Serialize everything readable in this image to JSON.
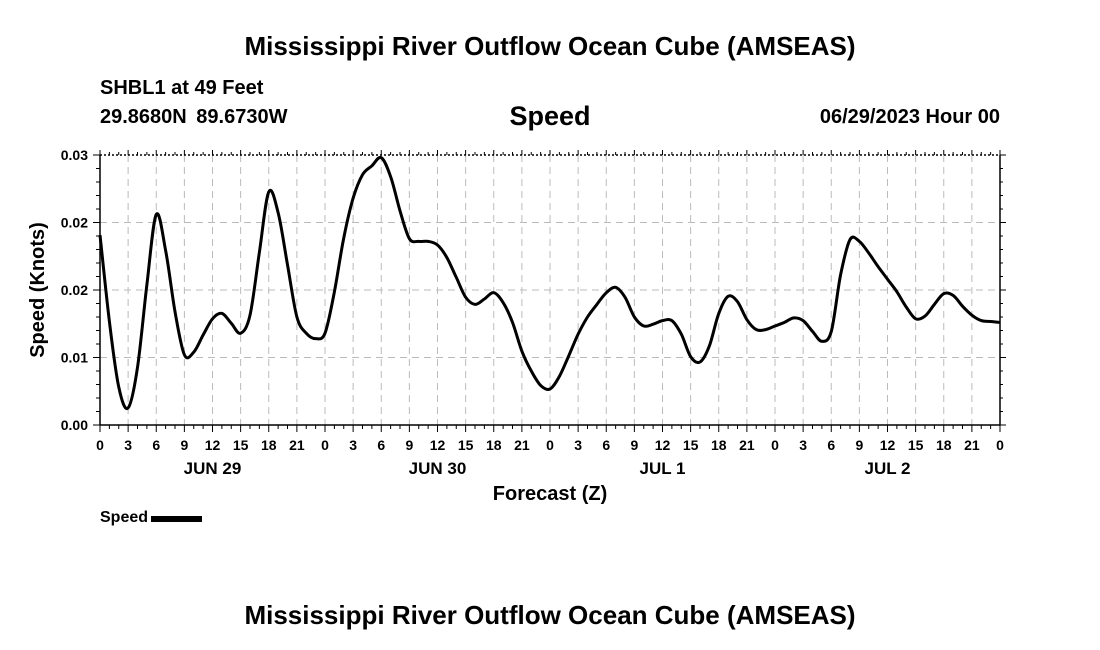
{
  "title": "Mississippi River Outflow Ocean Cube (AMSEAS)",
  "station": "SHBL1 at 49 Feet",
  "coordinates": "29.8680N  89.6730W",
  "parameter": "Speed",
  "datetime": "06/29/2023 Hour 00",
  "bottom_title": "Mississippi River Outflow Ocean Cube (AMSEAS)",
  "colors": {
    "line": "#000000",
    "grid": "#bbbbbb",
    "background": "#ffffff"
  },
  "chart_data": {
    "type": "line",
    "title": "Speed",
    "xlabel": "Forecast (Z)",
    "ylabel": "Speed (Knots)",
    "xlim": [
      0,
      96
    ],
    "ylim": [
      0,
      0.03
    ],
    "y_ticks": [
      "0.00",
      "0.01",
      "0.02",
      "0.02",
      "0.03"
    ],
    "x_tick_labels": [
      "0",
      "3",
      "6",
      "9",
      "12",
      "15",
      "18",
      "21",
      "0",
      "3",
      "6",
      "9",
      "12",
      "15",
      "18",
      "21",
      "0",
      "3",
      "6",
      "9",
      "12",
      "15",
      "18",
      "21",
      "0",
      "3",
      "6",
      "9",
      "12",
      "15",
      "18",
      "21",
      "0"
    ],
    "day_labels": [
      {
        "label": "JUN 29",
        "hour": 12
      },
      {
        "label": "JUN 30",
        "hour": 36
      },
      {
        "label": "JUL 1",
        "hour": 60
      },
      {
        "label": "JUL 2",
        "hour": 84
      }
    ],
    "grid": true,
    "legend_position": "bottom-left",
    "series": [
      {
        "name": "Speed",
        "x": [
          0,
          1,
          2,
          3,
          4,
          5,
          6,
          7,
          8,
          9,
          10,
          11,
          12,
          13,
          14,
          15,
          16,
          17,
          18,
          19,
          20,
          21,
          22,
          23,
          24,
          25,
          26,
          27,
          28,
          29,
          30,
          31,
          32,
          33,
          34,
          35,
          36,
          37,
          38,
          39,
          40,
          41,
          42,
          43,
          44,
          45,
          46,
          47,
          48,
          49,
          50,
          51,
          52,
          53,
          54,
          55,
          56,
          57,
          58,
          59,
          60,
          61,
          62,
          63,
          64,
          65,
          66,
          67,
          68,
          69,
          70,
          71,
          72,
          73,
          74,
          75,
          76,
          77,
          78,
          79,
          80,
          81,
          82,
          83,
          84,
          85,
          86,
          87,
          88,
          89,
          90,
          91,
          92,
          93,
          94,
          95,
          96
        ],
        "y": [
          0.0211,
          0.0115,
          0.0042,
          0.0019,
          0.0064,
          0.0156,
          0.0234,
          0.0194,
          0.0126,
          0.0078,
          0.0081,
          0.01,
          0.0118,
          0.0124,
          0.0113,
          0.0102,
          0.0122,
          0.0192,
          0.0259,
          0.0236,
          0.0178,
          0.012,
          0.0102,
          0.0096,
          0.0102,
          0.0148,
          0.0208,
          0.0252,
          0.0278,
          0.0288,
          0.0297,
          0.0276,
          0.0238,
          0.0207,
          0.0204,
          0.0204,
          0.02,
          0.0186,
          0.0164,
          0.0142,
          0.0134,
          0.014,
          0.0147,
          0.0136,
          0.0114,
          0.0082,
          0.006,
          0.0044,
          0.004,
          0.0054,
          0.0077,
          0.0101,
          0.012,
          0.0134,
          0.0147,
          0.0153,
          0.0142,
          0.012,
          0.011,
          0.0112,
          0.0116,
          0.0116,
          0.0101,
          0.0076,
          0.007,
          0.0088,
          0.0124,
          0.0143,
          0.0137,
          0.0117,
          0.0106,
          0.0106,
          0.011,
          0.0114,
          0.0119,
          0.0116,
          0.0104,
          0.0093,
          0.0104,
          0.0167,
          0.0206,
          0.0204,
          0.0191,
          0.0176,
          0.0162,
          0.0148,
          0.0131,
          0.0118,
          0.0121,
          0.0134,
          0.0146,
          0.0144,
          0.0132,
          0.0122,
          0.0116,
          0.0115,
          0.0114
        ]
      }
    ]
  }
}
